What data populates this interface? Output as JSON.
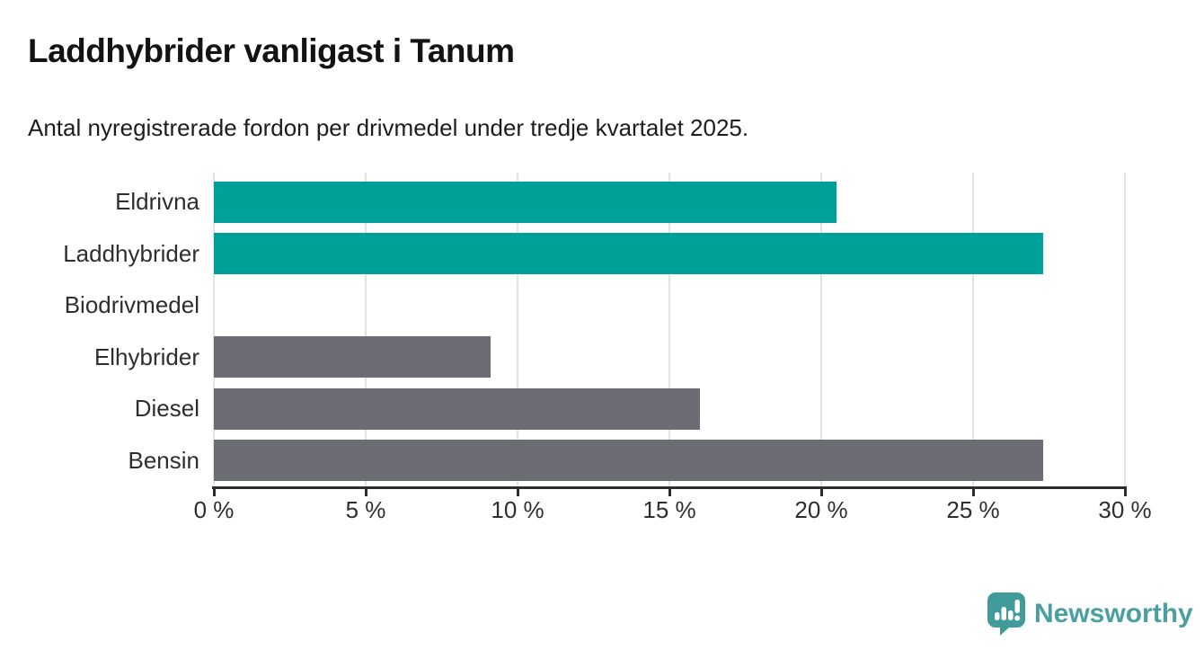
{
  "header": {
    "title": "Laddhybrider vanligast i Tanum",
    "subtitle": "Antal nyregistrerade fordon per drivmedel under tredje kvartalet 2025."
  },
  "chart_data": {
    "type": "bar",
    "orientation": "horizontal",
    "title": "Laddhybrider vanligast i Tanum",
    "subtitle": "Antal nyregistrerade fordon per drivmedel under tredje kvartalet 2025.",
    "categories": [
      "Eldrivna",
      "Laddhybrider",
      "Biodrivmedel",
      "Elhybrider",
      "Diesel",
      "Bensin"
    ],
    "values": [
      20.5,
      27.3,
      0,
      9.1,
      16,
      27.3
    ],
    "unit": "%",
    "xlabel": "",
    "ylabel": "",
    "xlim": [
      0,
      30
    ],
    "x_ticks": [
      0,
      5,
      10,
      15,
      20,
      25,
      30
    ],
    "x_tick_labels": [
      "0 %",
      "5 %",
      "10 %",
      "15 %",
      "20 %",
      "25 %",
      "30 %"
    ],
    "grid": true,
    "legend_position": "none",
    "bar_colors": [
      "#00a09a",
      "#00a09a",
      "#6c6c74",
      "#6c6c74",
      "#6c6c74",
      "#6c6c74"
    ],
    "colors": {
      "highlight": "#00a09a",
      "muted": "#6c6c74",
      "gridline": "#e3e3e5",
      "axis": "#2d2d2d"
    }
  },
  "footer": {
    "brand_name": "Newsworthy",
    "brand_color": "#4a9fa0",
    "brand_icon": "newsworthy-speech-bubble-chart-icon",
    "brand_icon_color": "#429b9b"
  }
}
